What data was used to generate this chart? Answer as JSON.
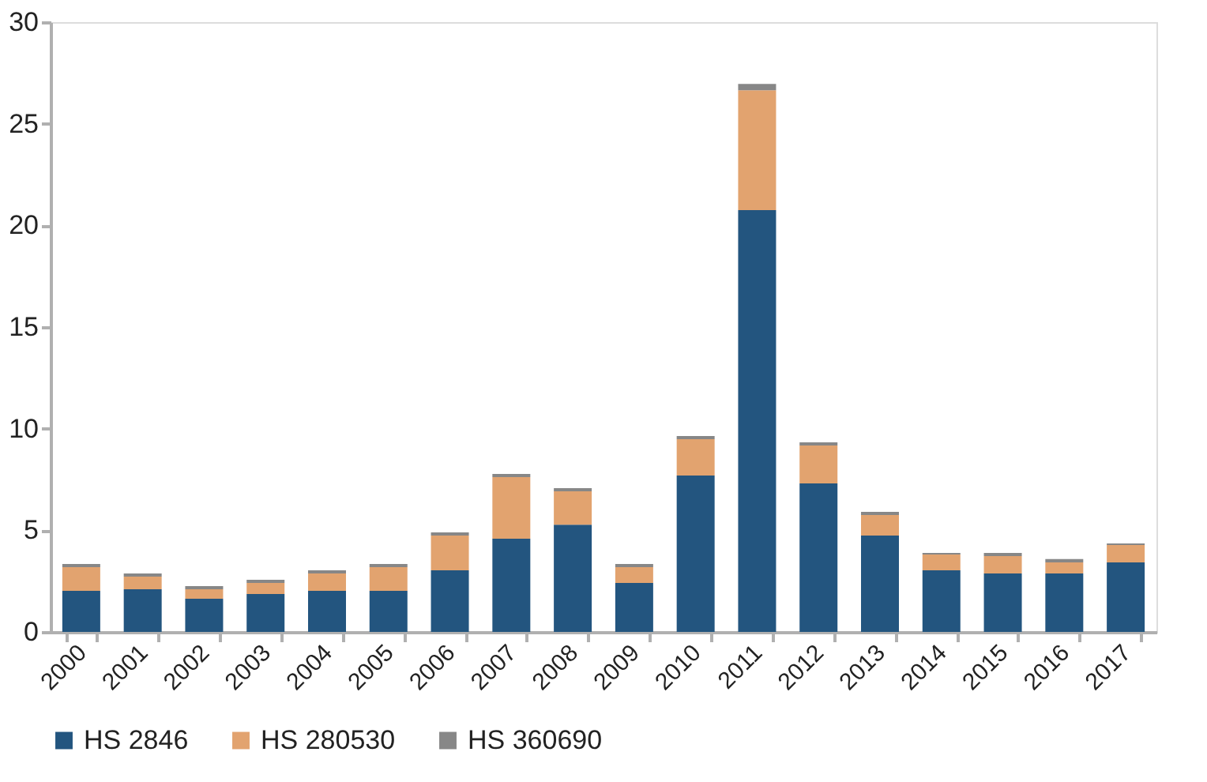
{
  "chart_data": {
    "type": "bar",
    "stacked": true,
    "categories": [
      "2000",
      "2001",
      "2002",
      "2003",
      "2004",
      "2005",
      "2006",
      "2007",
      "2008",
      "2009",
      "2010",
      "2011",
      "2012",
      "2013",
      "2014",
      "2015",
      "2016",
      "2017"
    ],
    "series": [
      {
        "name": "HS 2846",
        "color": "#23557f",
        "values": [
          2.02,
          2.1,
          1.63,
          1.87,
          2.02,
          2.02,
          3.03,
          4.59,
          5.28,
          2.41,
          7.69,
          20.75,
          7.31,
          4.74,
          3.03,
          2.88,
          2.88,
          3.42
        ]
      },
      {
        "name": "HS 280530",
        "color": "#e2a36f",
        "values": [
          1.17,
          0.62,
          0.47,
          0.54,
          0.86,
          1.17,
          1.71,
          3.03,
          1.64,
          0.78,
          1.79,
          5.9,
          1.86,
          1.01,
          0.78,
          0.85,
          0.54,
          0.85
        ]
      },
      {
        "name": "HS 360690",
        "color": "#878787",
        "values": [
          0.15,
          0.16,
          0.15,
          0.15,
          0.15,
          0.15,
          0.16,
          0.15,
          0.15,
          0.15,
          0.16,
          0.31,
          0.16,
          0.16,
          0.08,
          0.16,
          0.16,
          0.08
        ]
      }
    ],
    "ylim": [
      0,
      30
    ],
    "yticks": [
      0,
      5,
      10,
      15,
      20,
      25,
      30
    ],
    "grid": false,
    "legend": "bottom"
  }
}
